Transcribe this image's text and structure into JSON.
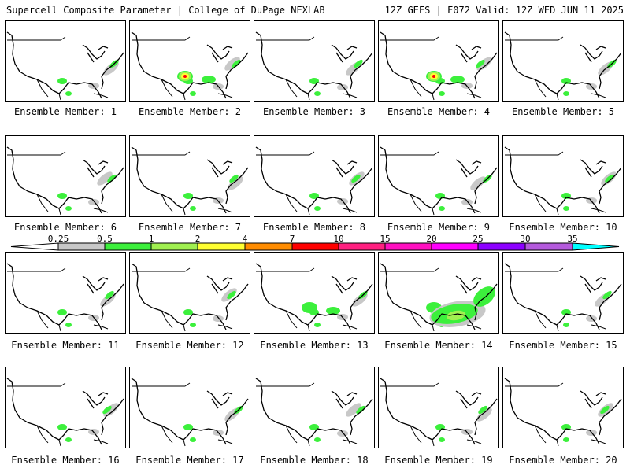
{
  "header": {
    "title": "Supercell Composite Parameter | College of DuPage NEXLAB",
    "run_info": "12Z GEFS | F072 Valid: 12Z WED JUN 11 2025"
  },
  "colorbar": {
    "thresholds": [
      "0.25",
      "0.5",
      "1",
      "2",
      "4",
      "7",
      "10",
      "15",
      "20",
      "25",
      "30",
      "35"
    ],
    "colors": [
      "#c8c8c8",
      "#3cf03c",
      "#a0f050",
      "#ffff32",
      "#ff8c00",
      "#ff0000",
      "#ff2080",
      "#ff10c0",
      "#ff00ff",
      "#8c00ff",
      "#b45adc",
      "#00ffff"
    ]
  },
  "map_colors": {
    "low": "#c8c8c8",
    "green": "#3cf03c",
    "lightgreen": "#a0f050",
    "yellow": "#ffff32",
    "orange": "#ff8c00",
    "red": "#ff0000"
  },
  "members": [
    {
      "label": "Ensemble Member: 1",
      "level": "low"
    },
    {
      "label": "Ensemble Member: 2",
      "level": "high"
    },
    {
      "label": "Ensemble Member: 3",
      "level": "low"
    },
    {
      "label": "Ensemble Member: 4",
      "level": "high"
    },
    {
      "label": "Ensemble Member: 5",
      "level": "low"
    },
    {
      "label": "Ensemble Member: 6",
      "level": "low"
    },
    {
      "label": "Ensemble Member: 7",
      "level": "low"
    },
    {
      "label": "Ensemble Member: 8",
      "level": "low"
    },
    {
      "label": "Ensemble Member: 9",
      "level": "low"
    },
    {
      "label": "Ensemble Member: 10",
      "level": "low"
    },
    {
      "label": "Ensemble Member: 11",
      "level": "low"
    },
    {
      "label": "Ensemble Member: 12",
      "level": "low"
    },
    {
      "label": "Ensemble Member: 13",
      "level": "medium"
    },
    {
      "label": "Ensemble Member: 14",
      "level": "high"
    },
    {
      "label": "Ensemble Member: 15",
      "level": "low"
    },
    {
      "label": "Ensemble Member: 16",
      "level": "low"
    },
    {
      "label": "Ensemble Member: 17",
      "level": "low"
    },
    {
      "label": "Ensemble Member: 18",
      "level": "low"
    },
    {
      "label": "Ensemble Member: 19",
      "level": "low"
    },
    {
      "label": "Ensemble Member: 20",
      "level": "low"
    }
  ]
}
